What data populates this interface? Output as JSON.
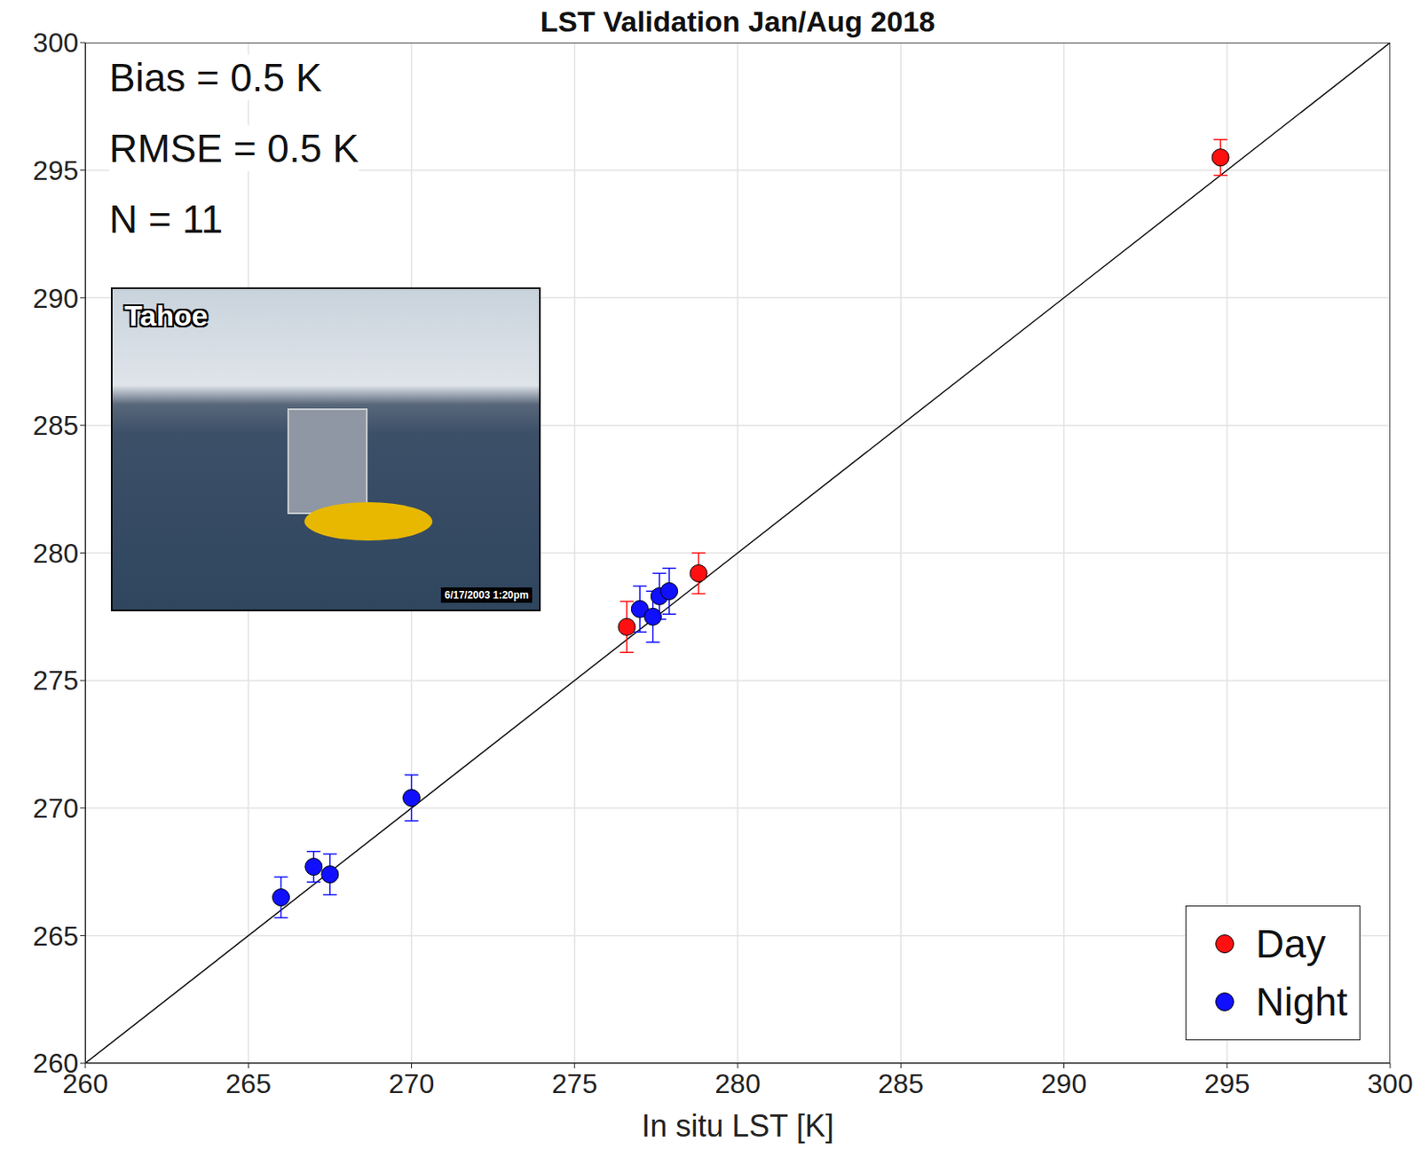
{
  "chart_data": {
    "type": "scatter",
    "title": "LST Validation Jan/Aug 2018",
    "x_label": "In situ LST [K]",
    "xlim": [
      260,
      300
    ],
    "ylim": [
      260,
      300
    ],
    "xticks": [
      260,
      265,
      270,
      275,
      280,
      285,
      290,
      295,
      300
    ],
    "yticks": [
      260,
      265,
      270,
      275,
      280,
      285,
      290,
      295,
      300
    ],
    "grid": true,
    "legend": "lower right",
    "marker": "circle",
    "annotations": [
      "Bias = 0.5 K",
      "RMSE = 0.5 K",
      "N = 11"
    ],
    "inset": {
      "title": "Tahoe",
      "timestamp": "6/17/2003 1:20pm"
    },
    "series": [
      {
        "name": "Day",
        "color": "#ff1010",
        "x": [
          276.6,
          278.8,
          294.8
        ],
        "values": [
          277.1,
          279.2,
          295.5
        ],
        "error": [
          1.0,
          0.8,
          0.7
        ]
      },
      {
        "name": "Night",
        "color": "#1010ff",
        "x": [
          266.0,
          267.0,
          267.5,
          270.0,
          277.0,
          277.4,
          277.6,
          277.9
        ],
        "values": [
          266.5,
          267.7,
          267.4,
          270.4,
          277.8,
          277.5,
          278.3,
          278.5
        ],
        "error": [
          0.8,
          0.6,
          0.8,
          0.9,
          0.9,
          1.0,
          0.9,
          0.9
        ]
      }
    ]
  }
}
